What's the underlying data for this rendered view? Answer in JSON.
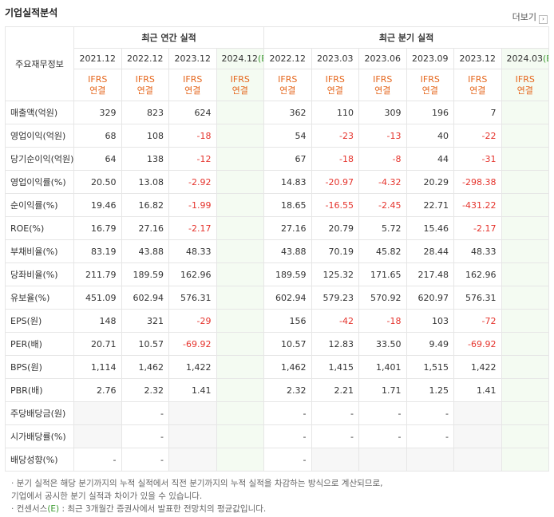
{
  "header": {
    "title": "기업실적분석",
    "more": "더보기"
  },
  "table": {
    "corner": "주요재무정보",
    "groups": [
      "최근 연간 실적",
      "최근 분기 실적"
    ],
    "periods": [
      {
        "period": "2021.12"
      },
      {
        "period": "2022.12"
      },
      {
        "period": "2023.12"
      },
      {
        "period": "2024.12",
        "estimate": "(E)"
      },
      {
        "period": "2022.12"
      },
      {
        "period": "2023.03"
      },
      {
        "period": "2023.06"
      },
      {
        "period": "2023.09"
      },
      {
        "period": "2023.12"
      },
      {
        "period": "2024.03",
        "estimate": "(E)"
      }
    ],
    "standard": [
      "IFRS",
      "연결"
    ],
    "rows": [
      {
        "label": "매출액(억원)",
        "cells": [
          "329",
          "823",
          "624",
          null,
          "362",
          "110",
          "309",
          "196",
          "7",
          null
        ]
      },
      {
        "label": "영업이익(억원)",
        "cells": [
          "68",
          "108",
          "-18",
          null,
          "54",
          "-23",
          "-13",
          "40",
          "-22",
          null
        ]
      },
      {
        "label": "당기순이익(억원)",
        "cells": [
          "64",
          "138",
          "-12",
          null,
          "67",
          "-18",
          "-8",
          "44",
          "-31",
          null
        ]
      },
      {
        "label": "영업이익률(%)",
        "cells": [
          "20.50",
          "13.08",
          "-2.92",
          null,
          "14.83",
          "-20.97",
          "-4.32",
          "20.29",
          "-298.38",
          null
        ]
      },
      {
        "label": "순이익률(%)",
        "cells": [
          "19.46",
          "16.82",
          "-1.99",
          null,
          "18.65",
          "-16.55",
          "-2.45",
          "22.71",
          "-431.22",
          null
        ]
      },
      {
        "label": "ROE(%)",
        "cells": [
          "16.79",
          "27.16",
          "-2.17",
          null,
          "27.16",
          "20.79",
          "5.72",
          "15.46",
          "-2.17",
          null
        ]
      },
      {
        "label": "부채비율(%)",
        "cells": [
          "83.19",
          "43.88",
          "48.33",
          null,
          "43.88",
          "70.19",
          "45.82",
          "28.44",
          "48.33",
          null
        ]
      },
      {
        "label": "당좌비율(%)",
        "cells": [
          "211.79",
          "189.59",
          "162.96",
          null,
          "189.59",
          "125.32",
          "171.65",
          "217.48",
          "162.96",
          null
        ]
      },
      {
        "label": "유보율(%)",
        "cells": [
          "451.09",
          "602.94",
          "576.31",
          null,
          "602.94",
          "579.23",
          "570.92",
          "620.97",
          "576.31",
          null
        ]
      },
      {
        "label": "EPS(원)",
        "cells": [
          "148",
          "321",
          "-29",
          null,
          "156",
          "-42",
          "-18",
          "103",
          "-72",
          null
        ]
      },
      {
        "label": "PER(배)",
        "cells": [
          "20.71",
          "10.57",
          "-69.92",
          null,
          "10.57",
          "12.83",
          "33.50",
          "9.49",
          "-69.92",
          null
        ]
      },
      {
        "label": "BPS(원)",
        "cells": [
          "1,114",
          "1,462",
          "1,422",
          null,
          "1,462",
          "1,415",
          "1,401",
          "1,515",
          "1,422",
          null
        ]
      },
      {
        "label": "PBR(배)",
        "cells": [
          "2.76",
          "2.32",
          "1.41",
          null,
          "2.32",
          "2.21",
          "1.71",
          "1.25",
          "1.41",
          null
        ]
      },
      {
        "label": "주당배당금(원)",
        "cells": [
          null,
          "-",
          null,
          null,
          "-",
          "-",
          "-",
          "-",
          null,
          null
        ]
      },
      {
        "label": "시가배당률(%)",
        "cells": [
          null,
          "-",
          null,
          null,
          "-",
          "-",
          "-",
          "-",
          null,
          null
        ]
      },
      {
        "label": "배당성향(%)",
        "cells": [
          "-",
          "-",
          null,
          null,
          "-",
          null,
          null,
          null,
          null,
          null
        ]
      }
    ]
  },
  "notes": [
    {
      "lines": [
        "분기 실적은 해당 분기까지의 누적 실적에서 직전 분기까지의 누적 실적을 차감하는 방식으로 계산되므로,",
        "기업에서 공시한 분기 실적과 차이가 있을 수 있습니다."
      ]
    },
    {
      "lines": [
        "컨센서스",
        "(E)",
        " : 최근 3개월간 증권사에서 발표한 전망치의 평균값입니다."
      ]
    }
  ]
}
